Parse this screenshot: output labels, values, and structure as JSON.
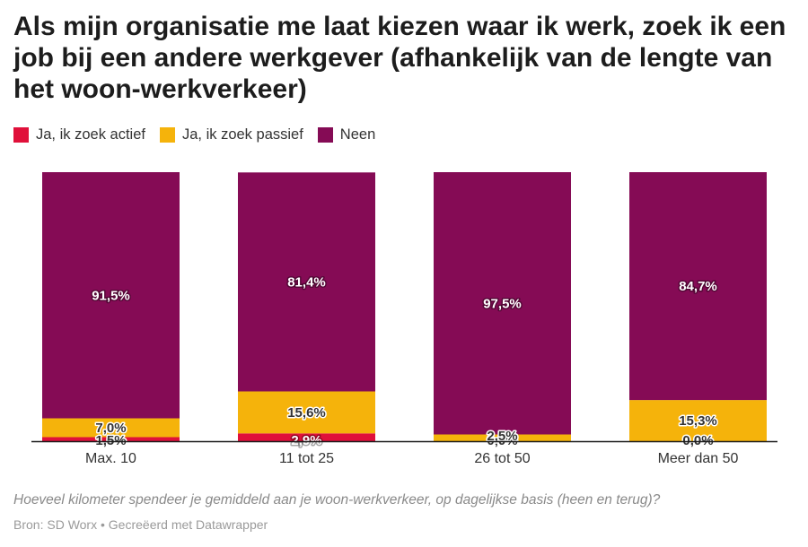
{
  "chart_data": {
    "type": "bar",
    "stacked": true,
    "title": "Als mijn organisatie me laat kiezen waar ik werk, zoek ik een job bij een andere werkgever (afhankelijk van de lengte van het woon-werkverkeer)",
    "categories": [
      "Max. 10",
      "11 tot 25",
      "26 tot 50",
      "Meer dan 50"
    ],
    "series": [
      {
        "name": "Ja, ik zoek actief",
        "color": "#e0103a",
        "values": [
          1.5,
          2.9,
          0.0,
          0.0
        ],
        "labels": [
          "1,5%",
          "2,9%",
          "0,0%",
          "0,0%"
        ]
      },
      {
        "name": "Ja, ik zoek passief",
        "color": "#f5b30b",
        "values": [
          7.0,
          15.6,
          2.5,
          15.3
        ],
        "labels": [
          "7,0%",
          "15,6%",
          "2,5%",
          "15,3%"
        ]
      },
      {
        "name": "Neen",
        "color": "#850b55",
        "values": [
          91.5,
          81.4,
          97.5,
          84.7
        ],
        "labels": [
          "91,5%",
          "81,4%",
          "97,5%",
          "84,7%"
        ]
      }
    ],
    "ylim": [
      0,
      100
    ],
    "legend_position": "top-left",
    "grid": false
  },
  "notes": {
    "subtitle": "Hoeveel kilometer spendeer je gemiddeld aan je woon-werkverkeer, op dagelijkse basis (heen en terug)?",
    "source": "Bron: SD Worx • Gecreëerd met Datawrapper"
  }
}
